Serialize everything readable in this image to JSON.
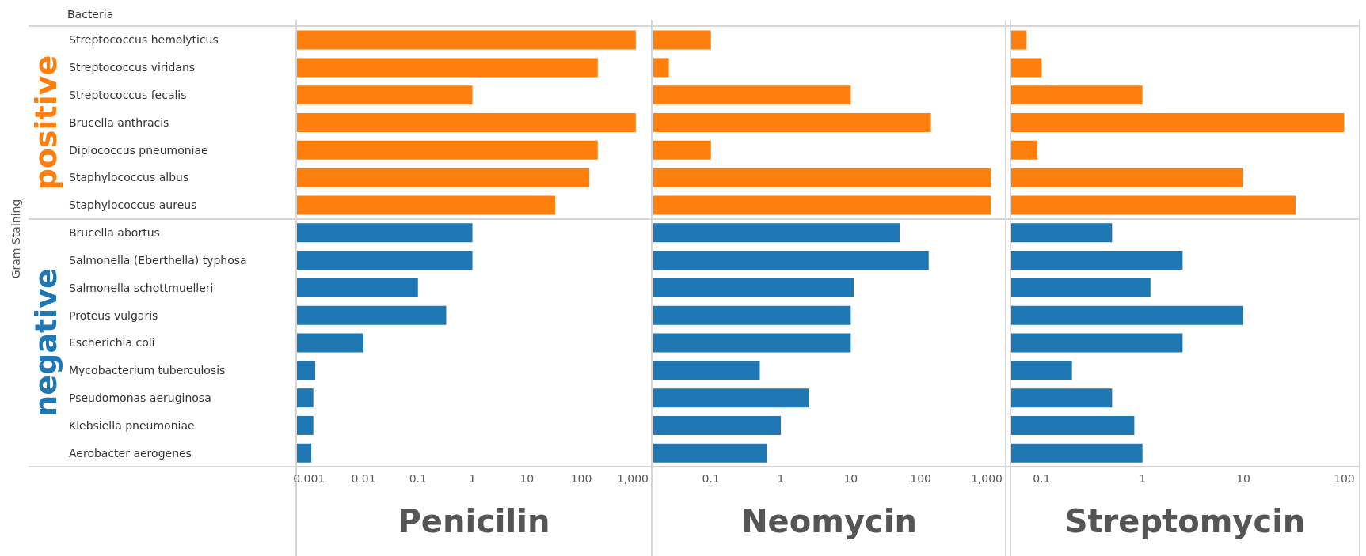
{
  "chart_data": [
    {
      "type": "bar",
      "orientation": "horizontal",
      "log": "x",
      "xlabel": "Penicilin",
      "ylabel": "Bacteria",
      "annotations": [
        "Gram Staining"
      ],
      "categories": [
        "Streptococcus hemolyticus",
        "Streptococcus viridans",
        "Streptococcus fecalis",
        "Brucella anthracis",
        "Diplococcus pneumoniae",
        "Staphylococcus albus",
        "Staphylococcus aureus",
        "Brucella abortus",
        "Salmonella (Eberthella) typhosa",
        "Salmonella schottmuelleri",
        "Proteus vulgaris",
        "Escherichia coli",
        "Mycobacterium tuberculosis",
        "Pseudomonas aeruginosa",
        "Klebsiella pneumoniae",
        "Aerobacter aerogenes"
      ],
      "series": [
        {
          "name": "positive",
          "color": "#ff7f0e",
          "values": [
            1000,
            200,
            1,
            1000,
            200,
            140,
            33,
            null,
            null,
            null,
            null,
            null,
            null,
            null,
            null,
            null
          ]
        },
        {
          "name": "negative",
          "color": "#1f77b4",
          "values": [
            null,
            null,
            null,
            null,
            null,
            null,
            null,
            1,
            1,
            0.1,
            0.33,
            0.01,
            0.0013,
            0.0012,
            0.0012,
            0.0011
          ]
        }
      ],
      "xlim": [
        0.0006,
        1900
      ],
      "xticks": [
        0.001,
        0.01,
        0.1,
        1,
        10,
        100,
        {
          "value": 1000,
          "label": "1,000"
        }
      ]
    },
    {
      "type": "bar",
      "orientation": "horizontal",
      "log": "x",
      "xlabel": "Neomycin",
      "tick_labels": "x",
      "series": [
        {
          "color": "#ff7f0e",
          "values": [
            0.1,
            0.025,
            10,
            140,
            0.1,
            1000,
            1000,
            null,
            null,
            null,
            null,
            null,
            null,
            null,
            null,
            null
          ]
        },
        {
          "color": "#1f77b4",
          "values": [
            null,
            null,
            null,
            null,
            null,
            null,
            null,
            50,
            130,
            11,
            10,
            10,
            0.5,
            2.5,
            1,
            0.63
          ]
        }
      ],
      "xlim": [
        0.015,
        1600
      ],
      "xticks": [
        0.1,
        1,
        10,
        100,
        {
          "value": 1000,
          "label": "1,000"
        }
      ]
    },
    {
      "type": "bar",
      "orientation": "horizontal",
      "log": "x",
      "xlabel": "Streptomycin",
      "tick_labels": "x",
      "series": [
        {
          "color": "#ff7f0e",
          "values": [
            0.071,
            0.1,
            1,
            100,
            0.091,
            10,
            33,
            null,
            null,
            null,
            null,
            null,
            null,
            null,
            null,
            null
          ]
        },
        {
          "color": "#1f77b4",
          "values": [
            null,
            null,
            null,
            null,
            null,
            null,
            null,
            0.5,
            2.5,
            1.2,
            10,
            2.5,
            0.2,
            0.5,
            0.83,
            1
          ]
        }
      ],
      "xlim": [
        0.05,
        140
      ],
      "xticks": [
        0.1,
        1,
        10,
        100
      ]
    }
  ]
}
